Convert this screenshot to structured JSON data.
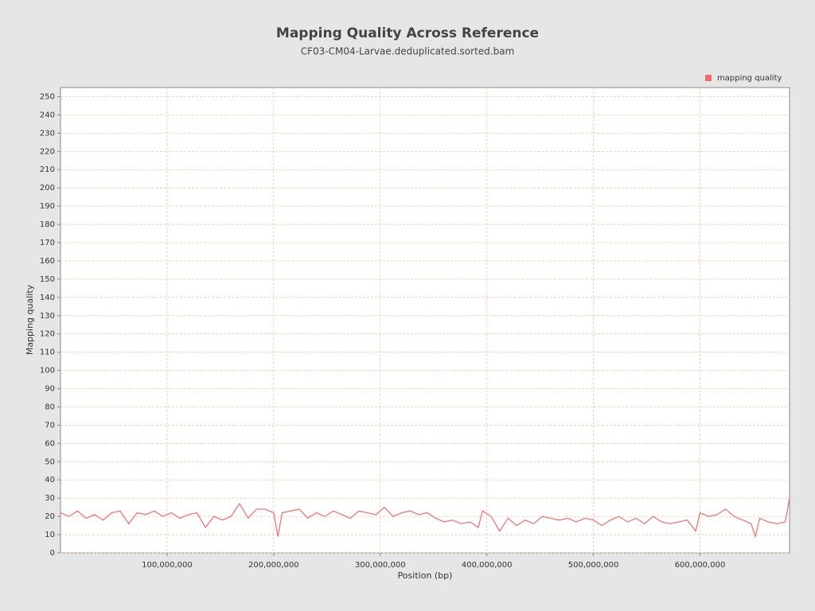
{
  "chart_data": {
    "type": "line",
    "title": "Mapping Quality Across Reference",
    "subtitle": "CF03-CM04-Larvae.deduplicated.sorted.bam",
    "x_label": "Position (bp)",
    "y_label": "Mapping quality",
    "xlim": [
      0,
      684000000
    ],
    "ylim": [
      0,
      255
    ],
    "xticks": [
      {
        "value": 100000000,
        "label": "100,000,000"
      },
      {
        "value": 200000000,
        "label": "200,000,000"
      },
      {
        "value": 300000000,
        "label": "300,000,000"
      },
      {
        "value": 400000000,
        "label": "400,000,000"
      },
      {
        "value": 500000000,
        "label": "500,000,000"
      },
      {
        "value": 600000000,
        "label": "600,000,000"
      }
    ],
    "yticks": [
      0,
      10,
      20,
      30,
      40,
      50,
      60,
      70,
      80,
      90,
      100,
      110,
      120,
      130,
      140,
      150,
      160,
      170,
      180,
      190,
      200,
      210,
      220,
      230,
      240,
      250
    ],
    "grid": true,
    "legend": "top-right",
    "x": [
      0,
      8000000,
      16000000,
      24000000,
      32000000,
      40000000,
      48000000,
      56000000,
      64000000,
      72000000,
      80000000,
      88000000,
      96000000,
      104000000,
      112000000,
      120000000,
      128000000,
      136000000,
      144000000,
      152000000,
      160000000,
      168000000,
      176000000,
      184000000,
      192000000,
      200000000,
      204000000,
      208000000,
      216000000,
      224000000,
      232000000,
      240000000,
      248000000,
      256000000,
      264000000,
      272000000,
      280000000,
      288000000,
      296000000,
      304000000,
      312000000,
      320000000,
      328000000,
      336000000,
      344000000,
      352000000,
      360000000,
      368000000,
      376000000,
      384000000,
      392000000,
      396000000,
      404000000,
      412000000,
      420000000,
      428000000,
      436000000,
      444000000,
      452000000,
      460000000,
      468000000,
      476000000,
      484000000,
      492000000,
      500000000,
      508000000,
      516000000,
      524000000,
      532000000,
      540000000,
      548000000,
      556000000,
      564000000,
      572000000,
      580000000,
      588000000,
      596000000,
      600000000,
      608000000,
      616000000,
      624000000,
      632000000,
      640000000,
      648000000,
      652000000,
      656000000,
      664000000,
      672000000,
      680000000,
      684000000
    ],
    "series": [
      {
        "name": "mapping quality",
        "color": "#f26b6b",
        "values": [
          22,
          20,
          23,
          19,
          21,
          18,
          22,
          23,
          16,
          22,
          21,
          23,
          20,
          22,
          19,
          21,
          22,
          14,
          20,
          18,
          20,
          27,
          19,
          24,
          24,
          22,
          9,
          22,
          23,
          24,
          19,
          22,
          20,
          23,
          21,
          19,
          23,
          22,
          21,
          25,
          20,
          22,
          23,
          21,
          22,
          19,
          17,
          18,
          16,
          17,
          14,
          23,
          20,
          12,
          19,
          15,
          18,
          16,
          20,
          19,
          18,
          19,
          17,
          19,
          18,
          15,
          18,
          20,
          17,
          19,
          16,
          20,
          17,
          16,
          17,
          18,
          12,
          22,
          20,
          21,
          24,
          20,
          18,
          16,
          9,
          19,
          17,
          16,
          17,
          30
        ]
      }
    ]
  }
}
